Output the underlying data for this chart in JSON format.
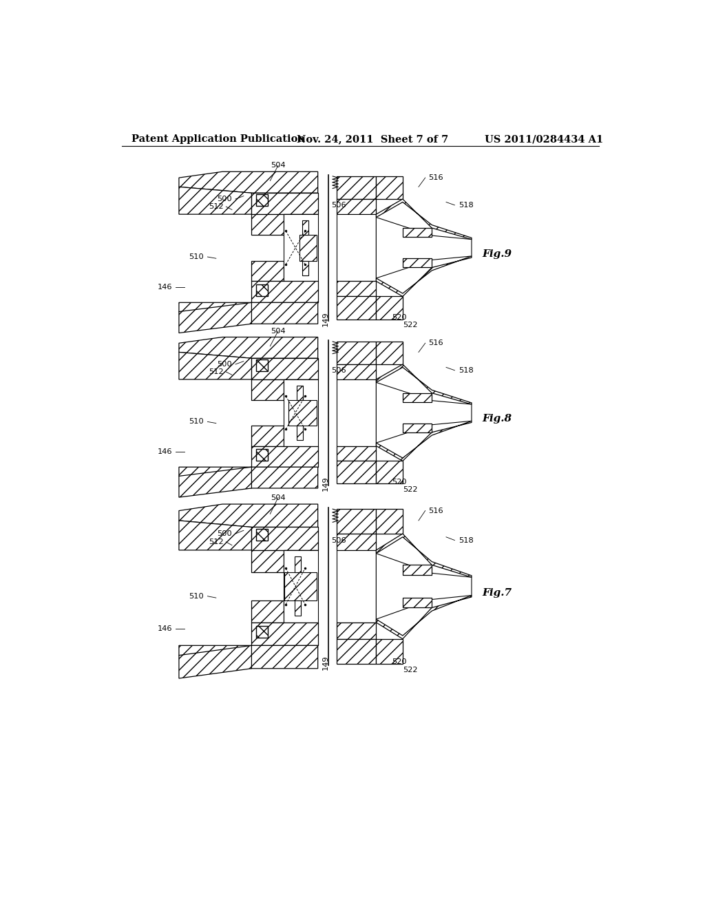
{
  "bg_color": "#ffffff",
  "header_left": "Patent Application Publication",
  "header_mid": "Nov. 24, 2011  Sheet 7 of 7",
  "header_right": "US 2011/0284434 A1",
  "header_fontsize": 10.5,
  "figures": [
    {
      "name": "Fig.9",
      "ytop": 118,
      "ybot": 405
    },
    {
      "name": "Fig.8",
      "ytop": 430,
      "ybot": 715
    },
    {
      "name": "Fig.7",
      "ytop": 745,
      "ybot": 1055
    }
  ]
}
